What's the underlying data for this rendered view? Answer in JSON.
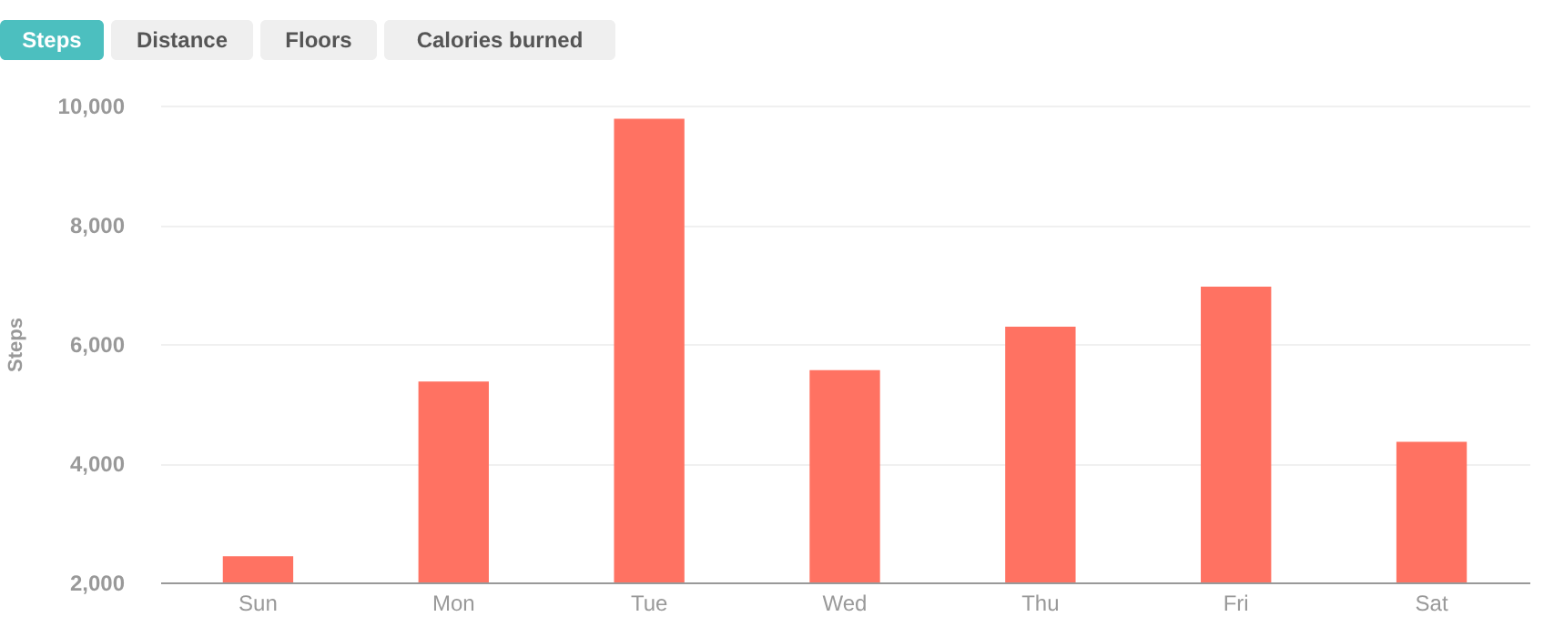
{
  "chart_data": {
    "type": "bar",
    "ylabel": "Steps",
    "categories": [
      "Sun",
      "Mon",
      "Tue",
      "Wed",
      "Thu",
      "Fri",
      "Sat"
    ],
    "values": [
      2440,
      5370,
      9780,
      5560,
      6290,
      6960,
      4360
    ],
    "color": "#ff7262",
    "ylim": [
      2000,
      10000
    ],
    "yticks": [
      {
        "value": 2000,
        "label": "2,000"
      },
      {
        "value": 4000,
        "label": "4,000"
      },
      {
        "value": 6000,
        "label": "6,000"
      },
      {
        "value": 8000,
        "label": "8,000"
      },
      {
        "value": 10000,
        "label": "10,000"
      }
    ],
    "grid": "y",
    "annotations": [
      "Steps",
      "Distance",
      "Floors",
      "Calories burned"
    ]
  }
}
